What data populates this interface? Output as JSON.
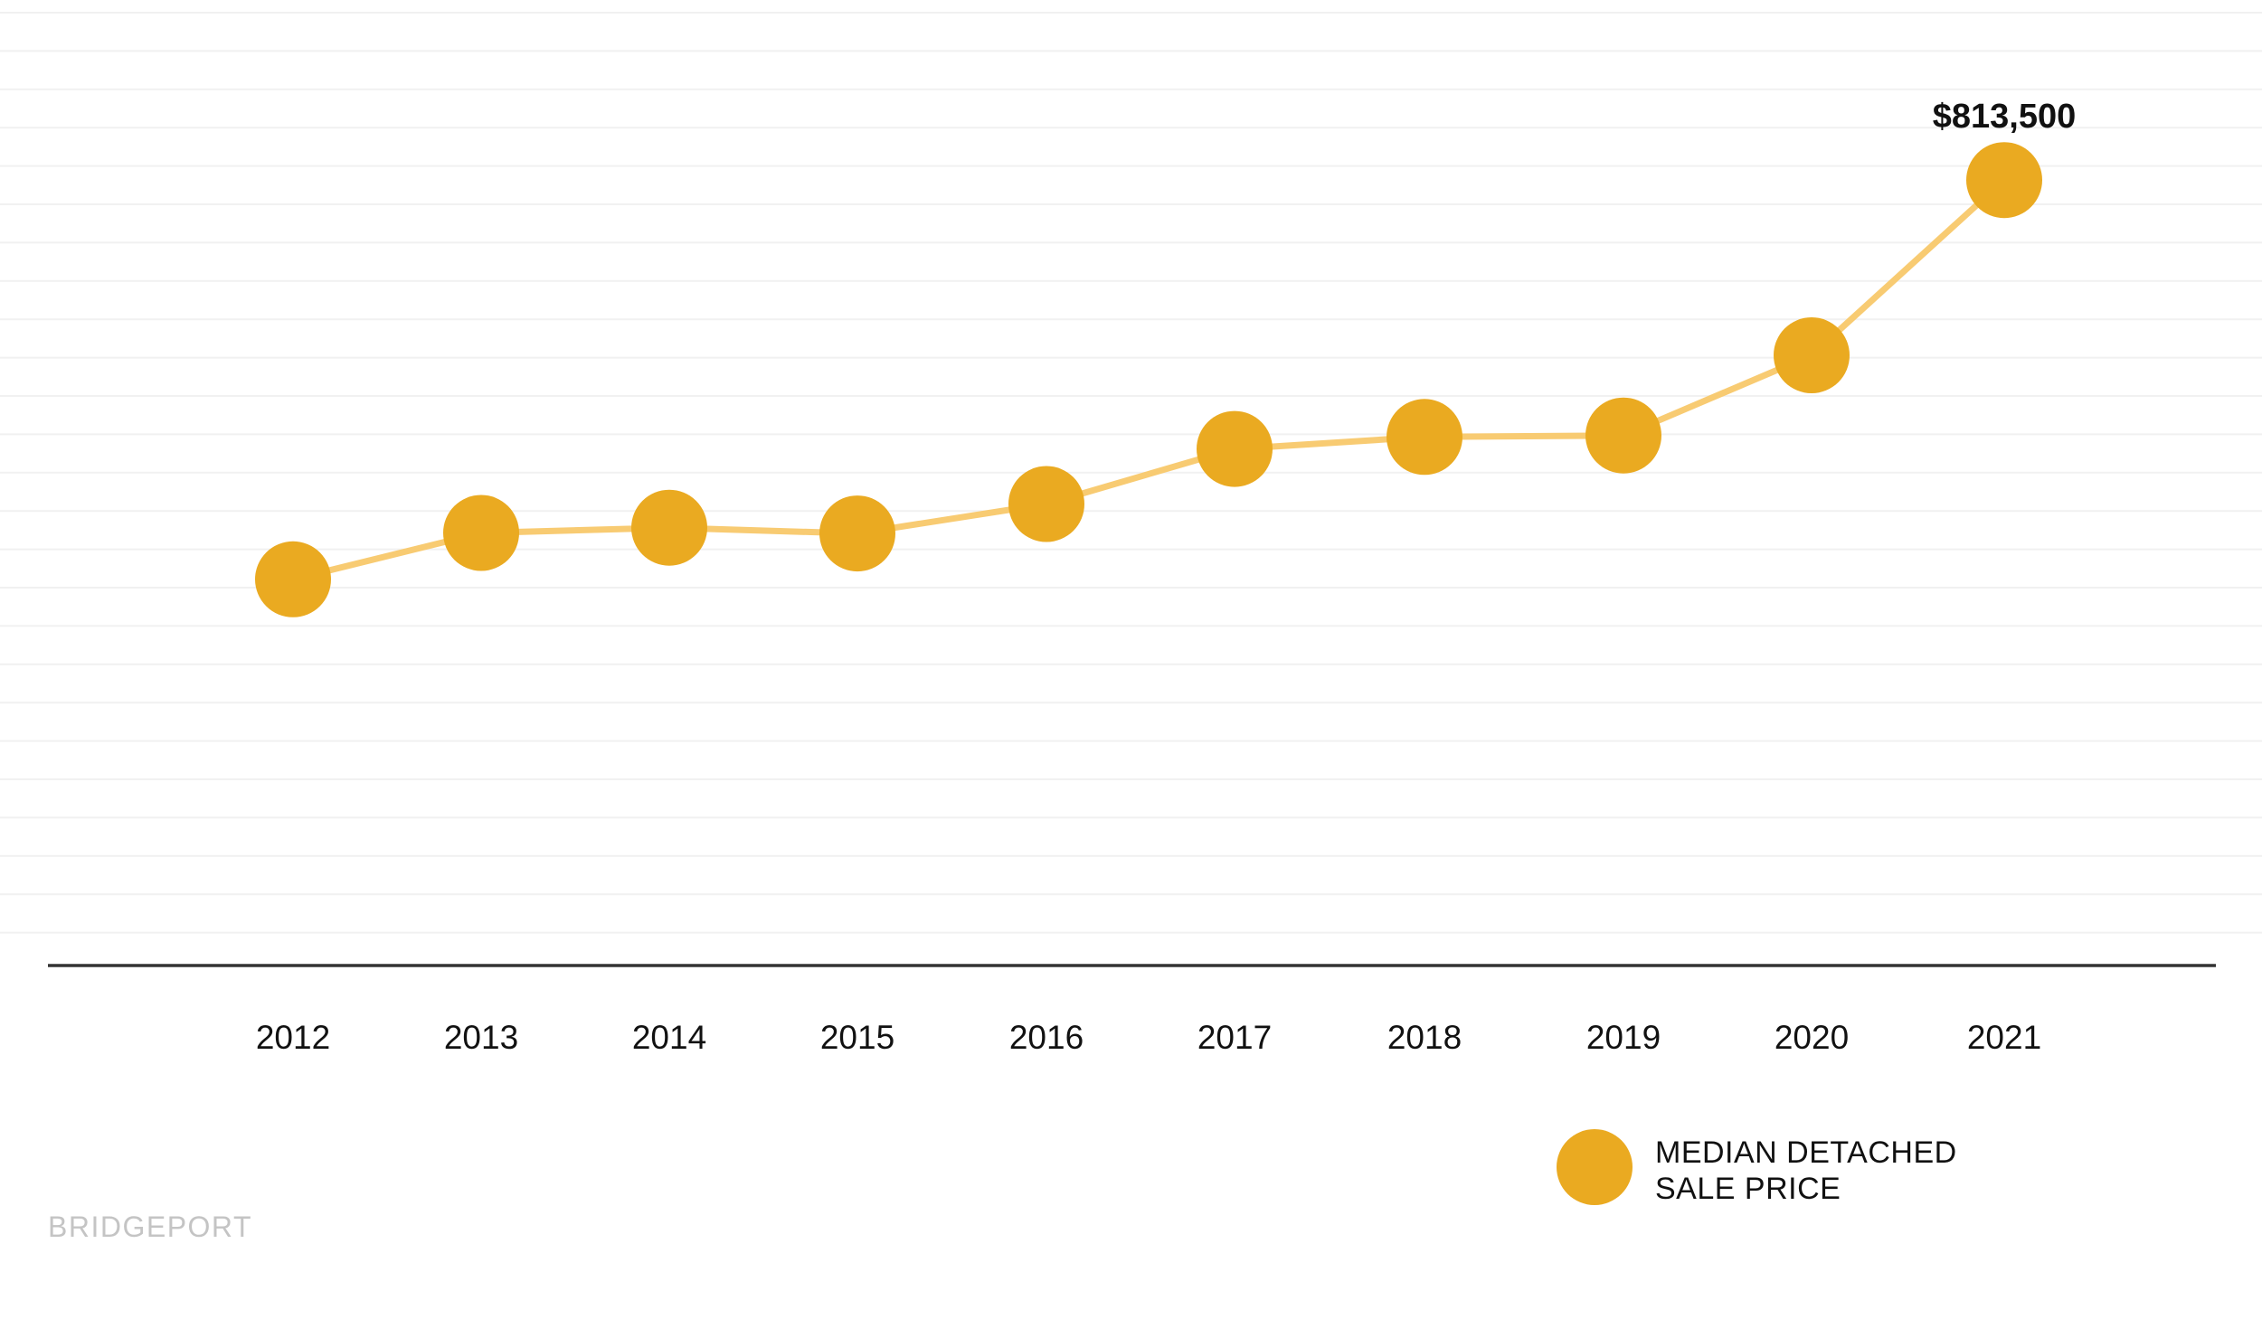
{
  "chart_data": {
    "type": "line",
    "categories": [
      "2012",
      "2013",
      "2014",
      "2015",
      "2016",
      "2017",
      "2018",
      "2019",
      "2020",
      "2021"
    ],
    "values": [
      400000,
      448000,
      453500,
      447500,
      478000,
      535000,
      547500,
      549000,
      632000,
      813500
    ],
    "title": "",
    "xlabel": "",
    "ylabel": "",
    "ylim": [
      0,
      1000000
    ],
    "grid": true,
    "annotations": [
      {
        "category": "2021",
        "text": "$813,500"
      }
    ],
    "legend": {
      "position": "bottom-right",
      "label_lines": [
        "MEDIAN DETACHED",
        "SALE PRICE"
      ]
    },
    "colors": {
      "point": "#eaaa21",
      "line": "#f8cb72",
      "grid": "#f1f1f1",
      "axis": "#333333"
    }
  },
  "brand": "BRIDGEPORT"
}
